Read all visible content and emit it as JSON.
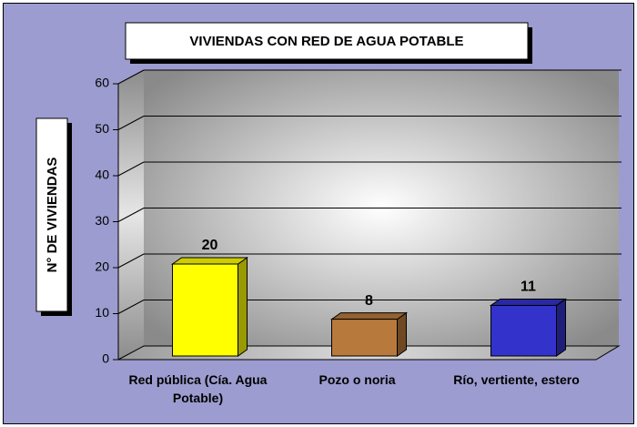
{
  "chart_data": {
    "type": "bar3d",
    "title": "VIVIENDAS CON RED DE AGUA POTABLE",
    "y_label": "N° DE VIVIENDAS",
    "categories": [
      "Red pública (Cía. Agua Potable)",
      "Pozo o noria",
      "Río, vertiente, estero"
    ],
    "values": [
      20,
      8,
      11
    ],
    "colors": [
      "#ffff00",
      "#b87a3c",
      "#3333cc"
    ],
    "ylim": [
      0,
      60
    ],
    "yticks": [
      0,
      10,
      20,
      30,
      40,
      50,
      60
    ],
    "grid": true
  }
}
